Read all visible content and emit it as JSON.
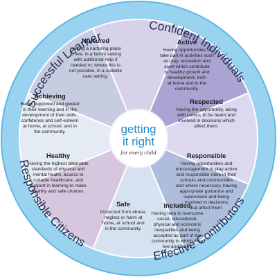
{
  "title": "",
  "center_logo": {
    "line1": "getting",
    "line2": "it right",
    "tagline": "for every child"
  },
  "ring_labels": [
    {
      "text": "Successful Learners"
    },
    {
      "text": "Confident Individuals"
    },
    {
      "text": "Effective Contributors"
    },
    {
      "text": "Responsible Citizens"
    }
  ],
  "segments": [
    {
      "title": "Active",
      "lines": [
        "Having opportunities to",
        "take part in activities such",
        "as play, recreation and",
        "sport which contribute",
        "to healthy growth and",
        "development, both",
        "at home and in the",
        "community."
      ],
      "color": "#d8d1ea"
    },
    {
      "title": "Respected",
      "lines": [
        "Having the opportunity, along",
        "with carers, to be heard and",
        "involved in decisions which",
        "affect them."
      ],
      "color": "#aaa4d2"
    },
    {
      "title": "Responsible",
      "lines": [
        "Having opportunities and",
        "encouragement to play active",
        "and responsible roles in their",
        "schools and communities",
        "and where necessary, having",
        "appropriate guidance and",
        "supervision and being",
        "involved in decisions",
        "that affect them."
      ],
      "color": "#dcd8f0"
    },
    {
      "title": "Included",
      "lines": [
        "Having help to overcome",
        "social, educational,",
        "physical and economic",
        "inequalities and being",
        "accepted as part of the",
        "community in which they",
        "live and learn."
      ],
      "color": "#aebddb"
    },
    {
      "title": "Safe",
      "lines": [
        "Protected from abuse,",
        "neglect or harm at",
        "home, at school and",
        "in the community."
      ],
      "color": "#d6e2f0"
    },
    {
      "title": "Healthy",
      "lines": [
        "Having the highest attainable",
        "standards of physical and",
        "mental health, access to",
        "suitable healthcare, and",
        "support in learning to make",
        "healthy and safe choices."
      ],
      "color": "#d6c6de"
    },
    {
      "title": "Achieving",
      "lines": [
        "Being supported and guided",
        "in their learning and in the",
        "development of their skills,",
        "confidence and self-esteem",
        "at home, at school, and in",
        "the community."
      ],
      "color": "#e4ebf4"
    },
    {
      "title": "Nurtured",
      "lines": [
        "Having a nurturing place",
        "to live, in a family setting",
        "with additional help if",
        "needed or, where this is",
        "not possible, in a suitable",
        "care setting."
      ],
      "color": "#c7cce0"
    }
  ],
  "colors": {
    "outer_ring": "#9ad3ef",
    "outer_ring_edge": "#5fb6e2",
    "divider": "#ffffff",
    "center_fill": "#ffffff",
    "ring_text": "#1d2b4f",
    "logo_blue": "#1e88c8"
  }
}
